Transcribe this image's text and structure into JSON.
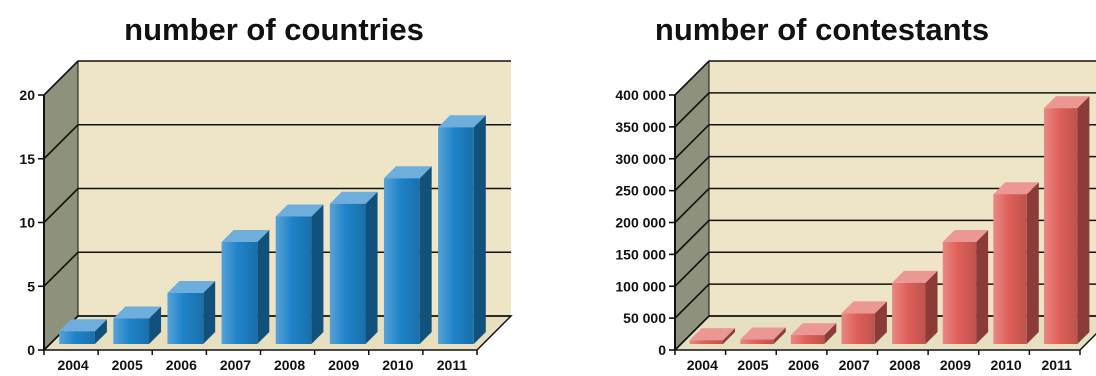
{
  "chart_data": [
    {
      "type": "bar",
      "title": "number of countries",
      "categories": [
        "2004",
        "2005",
        "2006",
        "2007",
        "2008",
        "2009",
        "2010",
        "2011"
      ],
      "values": [
        1,
        2,
        4,
        8,
        10,
        11,
        13,
        17
      ],
      "y_ticks": [
        0,
        5,
        10,
        15,
        20
      ],
      "y_tick_labels": [
        "0",
        "5",
        "10",
        "15",
        "20"
      ],
      "ylim": [
        0,
        20
      ],
      "grid": true,
      "bar_color": "#1f83c9",
      "style": "3d"
    },
    {
      "type": "bar",
      "title": "number of contestants",
      "categories": [
        "2004",
        "2005",
        "2006",
        "2007",
        "2008",
        "2009",
        "2010",
        "2011"
      ],
      "values": [
        6000,
        7000,
        14000,
        48000,
        96000,
        160000,
        235000,
        370000
      ],
      "y_ticks": [
        0,
        50000,
        100000,
        150000,
        200000,
        250000,
        300000,
        350000,
        400000
      ],
      "y_tick_labels": [
        "0",
        "50 000",
        "100 000",
        "150 000",
        "200 000",
        "250 000",
        "300 000",
        "350 000",
        "400 000"
      ],
      "ylim": [
        0,
        400000
      ],
      "grid": true,
      "bar_color": "#e0605a",
      "style": "3d"
    }
  ]
}
